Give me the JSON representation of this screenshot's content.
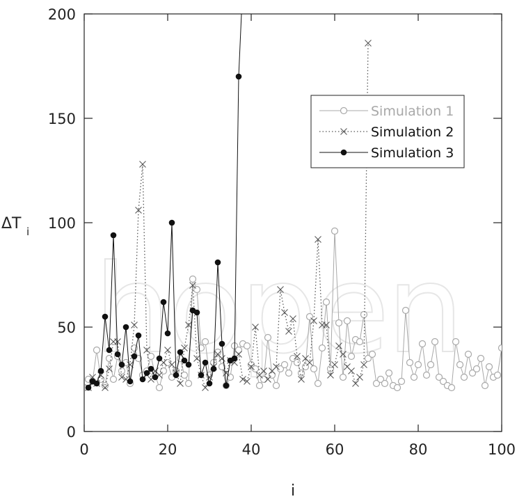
{
  "chart_data": {
    "type": "line",
    "xlabel": "i",
    "ylabel": "ΔT",
    "ylabel_subscript": "i",
    "xlim": [
      0,
      100
    ],
    "ylim": [
      0,
      200
    ],
    "x_ticks": [
      "0",
      "20",
      "40",
      "60",
      "80",
      "100"
    ],
    "y_ticks": [
      "0",
      "50",
      "100",
      "150",
      "200"
    ],
    "x_tick_values": [
      0,
      20,
      40,
      60,
      80,
      100
    ],
    "y_tick_values": [
      0,
      50,
      100,
      150,
      200
    ],
    "grid": false,
    "legend_position": "upper-right",
    "watermark": "IntechOpen",
    "series": [
      {
        "name": "Simulation 1",
        "color": "#a8a8a8",
        "line": "solid",
        "marker": "open-circle",
        "points": [
          [
            1,
            25
          ],
          [
            2,
            24
          ],
          [
            3,
            39
          ],
          [
            4,
            25
          ],
          [
            5,
            22
          ],
          [
            6,
            35
          ],
          [
            7,
            25
          ],
          [
            8,
            36
          ],
          [
            9,
            29
          ],
          [
            10,
            33
          ],
          [
            11,
            23
          ],
          [
            12,
            40
          ],
          [
            13,
            35
          ],
          [
            14,
            27
          ],
          [
            15,
            29
          ],
          [
            16,
            36
          ],
          [
            17,
            27
          ],
          [
            18,
            21
          ],
          [
            19,
            29
          ],
          [
            20,
            33
          ],
          [
            21,
            26
          ],
          [
            22,
            29
          ],
          [
            23,
            35
          ],
          [
            24,
            27
          ],
          [
            25,
            23
          ],
          [
            26,
            73
          ],
          [
            27,
            68
          ],
          [
            28,
            40
          ],
          [
            29,
            43
          ],
          [
            30,
            27
          ],
          [
            31,
            33
          ],
          [
            32,
            38
          ],
          [
            33,
            31
          ],
          [
            34,
            22
          ],
          [
            35,
            26
          ],
          [
            36,
            41
          ],
          [
            37,
            39
          ],
          [
            38,
            42
          ],
          [
            39,
            41
          ],
          [
            40,
            32
          ],
          [
            41,
            30
          ],
          [
            42,
            22
          ],
          [
            43,
            25
          ],
          [
            44,
            45
          ],
          [
            45,
            27
          ],
          [
            46,
            22
          ],
          [
            47,
            30
          ],
          [
            48,
            32
          ],
          [
            49,
            28
          ],
          [
            50,
            35
          ],
          [
            51,
            33
          ],
          [
            52,
            28
          ],
          [
            53,
            31
          ],
          [
            54,
            55
          ],
          [
            55,
            30
          ],
          [
            56,
            23
          ],
          [
            57,
            40
          ],
          [
            58,
            62
          ],
          [
            59,
            30
          ],
          [
            60,
            96
          ],
          [
            61,
            52
          ],
          [
            62,
            26
          ],
          [
            63,
            53
          ],
          [
            64,
            36
          ],
          [
            65,
            44
          ],
          [
            66,
            43
          ],
          [
            67,
            56
          ],
          [
            68,
            35
          ],
          [
            69,
            37
          ],
          [
            70,
            23
          ],
          [
            71,
            25
          ],
          [
            72,
            23
          ],
          [
            73,
            28
          ],
          [
            74,
            22
          ],
          [
            75,
            21
          ],
          [
            76,
            24
          ],
          [
            77,
            58
          ],
          [
            78,
            33
          ],
          [
            79,
            26
          ],
          [
            80,
            32
          ],
          [
            81,
            42
          ],
          [
            82,
            27
          ],
          [
            83,
            32
          ],
          [
            84,
            43
          ],
          [
            85,
            26
          ],
          [
            86,
            24
          ],
          [
            87,
            22
          ],
          [
            88,
            21
          ],
          [
            89,
            43
          ],
          [
            90,
            32
          ],
          [
            91,
            26
          ],
          [
            92,
            37
          ],
          [
            93,
            28
          ],
          [
            94,
            30
          ],
          [
            95,
            35
          ],
          [
            96,
            22
          ],
          [
            97,
            31
          ],
          [
            98,
            26
          ],
          [
            99,
            27
          ],
          [
            100,
            40
          ]
        ]
      },
      {
        "name": "Simulation 2",
        "color": "#555555",
        "line": "dotted",
        "marker": "x",
        "points": [
          [
            1,
            21
          ],
          [
            2,
            26
          ],
          [
            3,
            23
          ],
          [
            4,
            27
          ],
          [
            5,
            21
          ],
          [
            6,
            30
          ],
          [
            7,
            43
          ],
          [
            8,
            43
          ],
          [
            9,
            26
          ],
          [
            10,
            25
          ],
          [
            11,
            32
          ],
          [
            12,
            51
          ],
          [
            13,
            106
          ],
          [
            14,
            128
          ],
          [
            15,
            39
          ],
          [
            16,
            25
          ],
          [
            17,
            29
          ],
          [
            18,
            27
          ],
          [
            19,
            33
          ],
          [
            20,
            39
          ],
          [
            21,
            32
          ],
          [
            22,
            28
          ],
          [
            23,
            23
          ],
          [
            24,
            40
          ],
          [
            25,
            51
          ],
          [
            26,
            70
          ],
          [
            27,
            35
          ],
          [
            28,
            27
          ],
          [
            29,
            21
          ],
          [
            30,
            26
          ],
          [
            31,
            31
          ],
          [
            32,
            37
          ],
          [
            33,
            35
          ],
          [
            34,
            28
          ],
          [
            35,
            34
          ],
          [
            36,
            33
          ],
          [
            37,
            37
          ],
          [
            38,
            25
          ],
          [
            39,
            24
          ],
          [
            40,
            31
          ],
          [
            41,
            50
          ],
          [
            42,
            27
          ],
          [
            43,
            29
          ],
          [
            44,
            25
          ],
          [
            45,
            29
          ],
          [
            46,
            31
          ],
          [
            47,
            68
          ],
          [
            48,
            57
          ],
          [
            49,
            48
          ],
          [
            50,
            54
          ],
          [
            51,
            36
          ],
          [
            52,
            25
          ],
          [
            53,
            35
          ],
          [
            54,
            33
          ],
          [
            55,
            53
          ],
          [
            56,
            92
          ],
          [
            57,
            51
          ],
          [
            58,
            51
          ],
          [
            59,
            27
          ],
          [
            60,
            32
          ],
          [
            61,
            41
          ],
          [
            62,
            37
          ],
          [
            63,
            31
          ],
          [
            64,
            29
          ],
          [
            65,
            23
          ],
          [
            66,
            26
          ],
          [
            67,
            32
          ],
          [
            68,
            186
          ]
        ]
      },
      {
        "name": "Simulation 3",
        "color": "#111111",
        "line": "solid",
        "marker": "filled-circle",
        "points": [
          [
            1,
            21
          ],
          [
            2,
            24
          ],
          [
            3,
            23
          ],
          [
            4,
            29
          ],
          [
            5,
            55
          ],
          [
            6,
            39
          ],
          [
            7,
            94
          ],
          [
            8,
            37
          ],
          [
            9,
            32
          ],
          [
            10,
            50
          ],
          [
            11,
            24
          ],
          [
            12,
            36
          ],
          [
            13,
            46
          ],
          [
            14,
            25
          ],
          [
            15,
            28
          ],
          [
            16,
            30
          ],
          [
            17,
            26
          ],
          [
            18,
            35
          ],
          [
            19,
            62
          ],
          [
            20,
            47
          ],
          [
            21,
            100
          ],
          [
            22,
            27
          ],
          [
            23,
            38
          ],
          [
            24,
            34
          ],
          [
            25,
            32
          ],
          [
            26,
            58
          ],
          [
            27,
            57
          ],
          [
            28,
            27
          ],
          [
            29,
            33
          ],
          [
            30,
            23
          ],
          [
            31,
            30
          ],
          [
            32,
            81
          ],
          [
            33,
            42
          ],
          [
            34,
            22
          ],
          [
            35,
            34
          ],
          [
            36,
            35
          ],
          [
            37,
            170
          ],
          [
            38,
            215
          ]
        ]
      }
    ]
  }
}
